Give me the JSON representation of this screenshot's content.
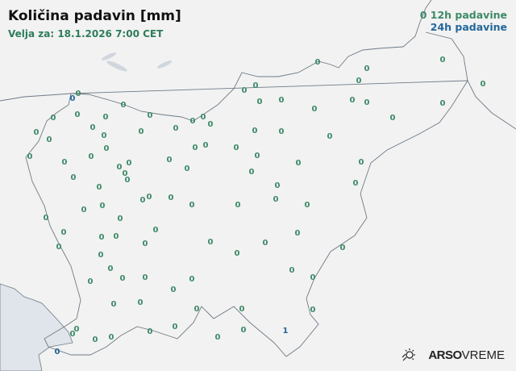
{
  "header": {
    "title": "Količina padavin [mm]",
    "valid_for": "Velja za: 18.1.2026 7:00 CET"
  },
  "legend": {
    "sample_value": "0",
    "label_12h": "12h padavine",
    "label_24h": "24h padavine"
  },
  "logo": {
    "brand": "ARSO",
    "product": "VREME",
    "icon": "sun-rain-icon"
  },
  "colors": {
    "precip_12h": "#3d8a68",
    "precip_24h": "#23679a",
    "land": "#f2f2f2",
    "sea": "#dfe5ea",
    "border": "#6f7a86"
  },
  "stations_12h": [
    "0",
    "0",
    "0",
    "0",
    "0",
    "0",
    "0",
    "0",
    "0",
    "0",
    "0",
    "0",
    "0",
    "0",
    "0",
    "0",
    "0",
    "0",
    "0",
    "0",
    "0",
    "0",
    "0",
    "0",
    "0",
    "0",
    "0",
    "0",
    "0",
    "0",
    "0",
    "0",
    "0",
    "0",
    "0",
    "0",
    "0",
    "0",
    "0",
    "0",
    "0",
    "0",
    "0",
    "0",
    "0",
    "0",
    "0",
    "0",
    "0",
    "0",
    "0",
    "0",
    "0",
    "0",
    "0",
    "0",
    "0",
    "0",
    "0",
    "0",
    "0",
    "0",
    "0",
    "0",
    "0",
    "0",
    "0",
    "0",
    "0",
    "0",
    "0",
    "0",
    "0",
    "0",
    "0",
    "0",
    "0",
    "0",
    "0",
    "0",
    "0",
    "0",
    "0",
    "0",
    "0",
    "0",
    "0",
    "0",
    "0",
    "0",
    "0",
    "0",
    "0",
    "0",
    "0",
    "0",
    "0"
  ],
  "stations_24h": [
    "0",
    "1",
    "0"
  ]
}
